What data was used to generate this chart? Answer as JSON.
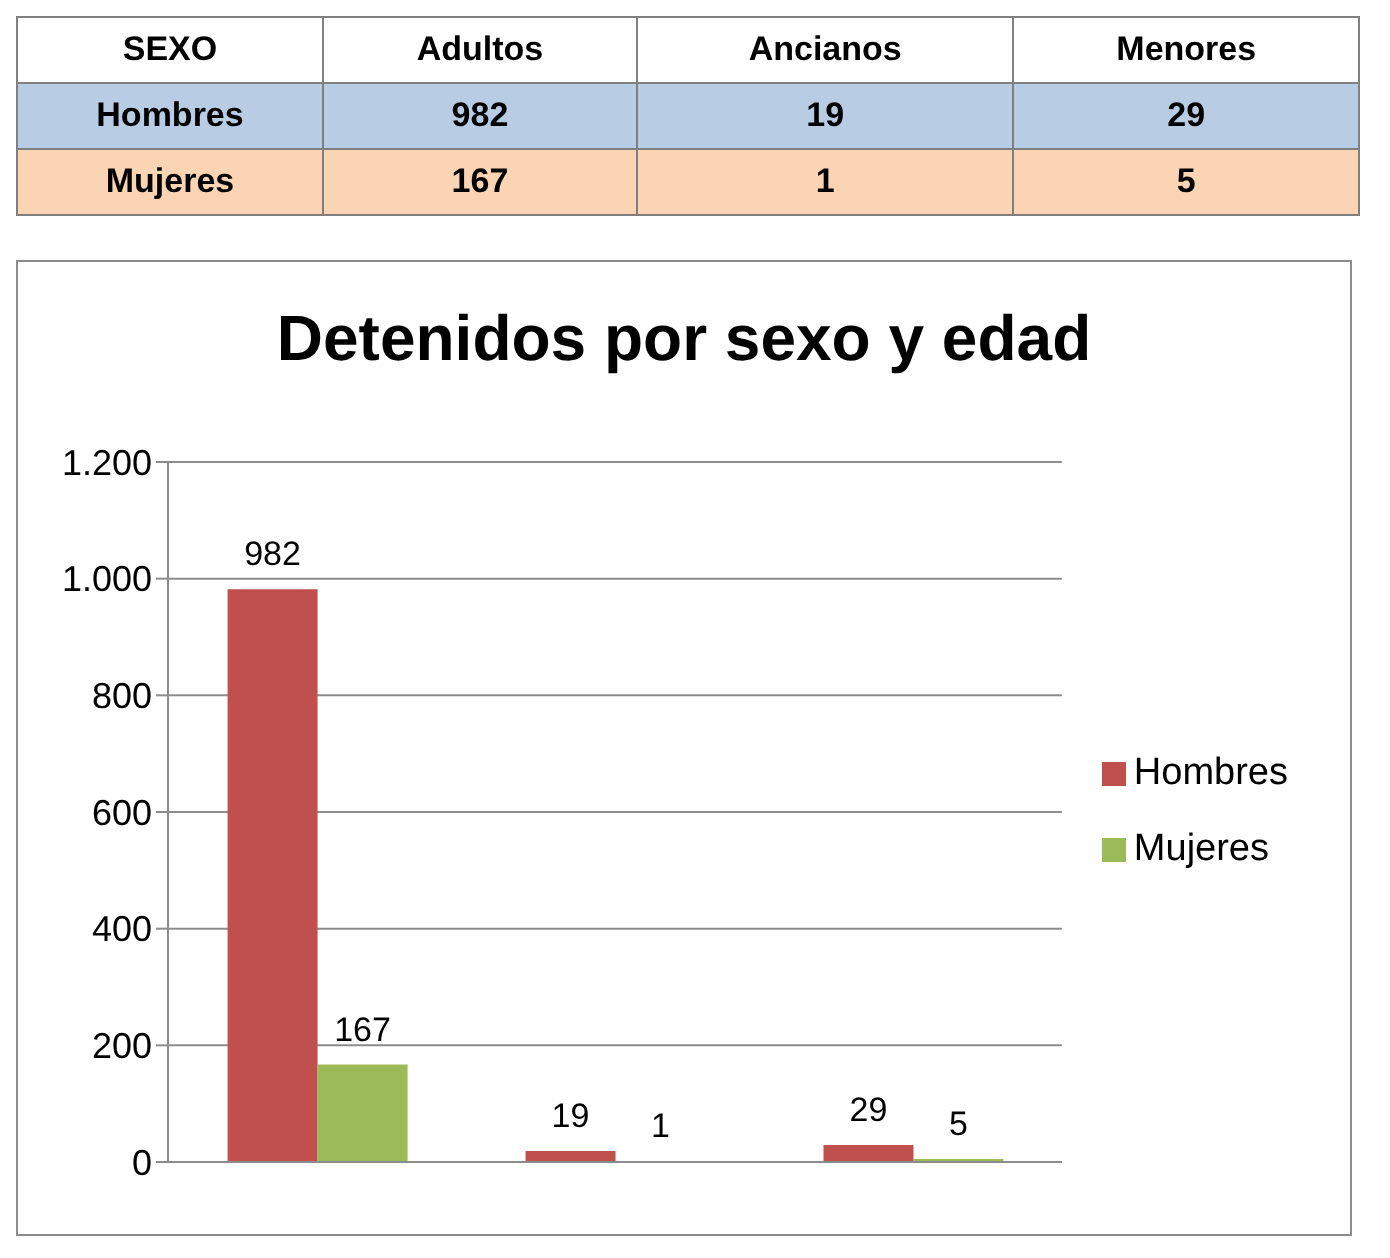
{
  "chart_data": [
    {
      "type": "other",
      "data_labels": true,
      "annotations": [
        "SEXO"
      ],
      "categories": [
        "Adultos",
        "Ancianos",
        "Menores"
      ],
      "series": [
        {
          "name": "Hombres",
          "values": [
            982,
            19,
            29
          ]
        },
        {
          "name": "Mujeres",
          "values": [
            167,
            1,
            5
          ]
        }
      ]
    },
    {
      "type": "bar",
      "title": "Detenidos por sexo y edad",
      "categories": [
        null,
        null,
        null
      ],
      "series": [
        {
          "name": "Hombres",
          "color": "#c0504d",
          "values": [
            982,
            19,
            29
          ]
        },
        {
          "name": "Mujeres",
          "color": "#9bbb59",
          "values": [
            167,
            1,
            5
          ]
        }
      ],
      "ylim": [
        0,
        1200
      ],
      "yticks": [
        0,
        200,
        400,
        600,
        800,
        {
          "value": 1000,
          "label": "1.000"
        },
        {
          "value": 1200,
          "label": "1.200"
        }
      ],
      "grid": "y",
      "legend": "right",
      "data_labels": true,
      "tick_labels": "y"
    }
  ]
}
